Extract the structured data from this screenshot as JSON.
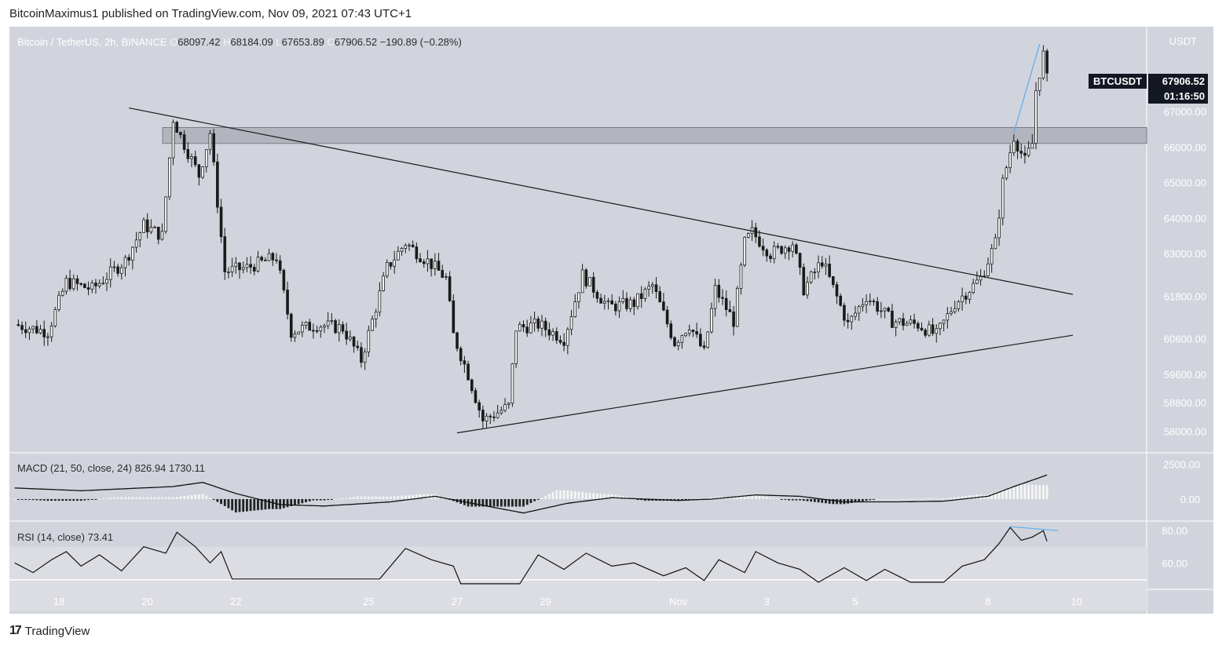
{
  "header": {
    "text": "BitcoinMaximus1 published on TradingView.com, Nov 09, 2021 07:43 UTC+1"
  },
  "footer": {
    "logo": "17",
    "brand": "TradingView"
  },
  "legend": {
    "symbol": "Bitcoin / TetherUS, 2h, BINANCE",
    "o_label": "O",
    "o": "68097.42",
    "h_label": "H",
    "h": "68184.09",
    "l_label": "L",
    "l": "67653.89",
    "c_label": "C",
    "c": "67906.52",
    "change": "−190.89 (−0.28%)"
  },
  "badges": {
    "symbol": "BTCUSDT",
    "price": "67906.52",
    "countdown": "01:16:50"
  },
  "colors": {
    "bg": "#d1d4dc",
    "plot_bg": "#d1d4dc",
    "candle": "#1a1a1a",
    "trendline": "#1a1a1a",
    "accent_line": "#5aaef0",
    "zone": "#b2b5be"
  },
  "chart_data": [
    {
      "type": "candlestick",
      "title": "",
      "unit_label": "USDT",
      "y_ticks": [
        "58000.00",
        "58800.00",
        "59600.00",
        "60600.00",
        "61800.00",
        "63000.00",
        "64000.00",
        "65000.00",
        "66000.00",
        "67000.00"
      ],
      "ylim": [
        57500,
        69300
      ],
      "x_ticks": [
        "18",
        "20",
        "22",
        "25",
        "27",
        "29",
        "Nov",
        "3",
        "5",
        "8",
        "10"
      ],
      "x_tick_dates": [
        "Oct 18",
        "Oct 20",
        "Oct 22",
        "Oct 25",
        "Oct 27",
        "Oct 29",
        "Nov 1",
        "Nov 3",
        "Nov 5",
        "Nov 8",
        "Nov 10"
      ],
      "interval": "2h",
      "resistance_zone": [
        66100,
        66550
      ],
      "descending_trendline": {
        "from": {
          "date": "Oct 19 14:00",
          "y": 67100
        },
        "to": {
          "date": "Nov 9 22:00",
          "y": 61850
        }
      },
      "ascending_trendline": {
        "from": {
          "date": "Oct 27 00:00",
          "y": 57950
        },
        "to": {
          "date": "Nov 9 22:00",
          "y": 60700
        }
      },
      "closes_anchor": [
        {
          "date": "Oct 17 00:00",
          "close": 61000
        },
        {
          "date": "Oct 17 18:00",
          "close": 60800
        },
        {
          "date": "Oct 18 04:00",
          "close": 62200
        },
        {
          "date": "Oct 18 18:00",
          "close": 62000
        },
        {
          "date": "Oct 19 12:00",
          "close": 62800
        },
        {
          "date": "Oct 19 22:00",
          "close": 63800
        },
        {
          "date": "Oct 20 08:00",
          "close": 63500
        },
        {
          "date": "Oct 20 14:00",
          "close": 66800
        },
        {
          "date": "Oct 20 18:00",
          "close": 66300
        },
        {
          "date": "Oct 21 04:00",
          "close": 65200
        },
        {
          "date": "Oct 21 10:00",
          "close": 66400
        },
        {
          "date": "Oct 21 18:00",
          "close": 62500
        },
        {
          "date": "Oct 22 06:00",
          "close": 62600
        },
        {
          "date": "Oct 22 22:00",
          "close": 62900
        },
        {
          "date": "Oct 23 06:00",
          "close": 60800
        },
        {
          "date": "Oct 23 20:00",
          "close": 61000
        },
        {
          "date": "Oct 24 10:00",
          "close": 60900
        },
        {
          "date": "Oct 24 20:00",
          "close": 60000
        },
        {
          "date": "Oct 25 10:00",
          "close": 62600
        },
        {
          "date": "Oct 25 20:00",
          "close": 63300
        },
        {
          "date": "Oct 26 10:00",
          "close": 62700
        },
        {
          "date": "Oct 26 18:00",
          "close": 62300
        },
        {
          "date": "Oct 26 22:00",
          "close": 60700
        },
        {
          "date": "Oct 27 06:00",
          "close": 59600
        },
        {
          "date": "Oct 27 14:00",
          "close": 58300
        },
        {
          "date": "Oct 28 04:00",
          "close": 58700
        },
        {
          "date": "Oct 28 08:00",
          "close": 60900
        },
        {
          "date": "Oct 28 20:00",
          "close": 61000
        },
        {
          "date": "Oct 29 10:00",
          "close": 60600
        },
        {
          "date": "Oct 29 20:00",
          "close": 62400
        },
        {
          "date": "Oct 30 10:00",
          "close": 61500
        },
        {
          "date": "Oct 31 00:00",
          "close": 61600
        },
        {
          "date": "Oct 31 10:00",
          "close": 62100
        },
        {
          "date": "Oct 31 22:00",
          "close": 60500
        },
        {
          "date": "Nov 1 06:00",
          "close": 61000
        },
        {
          "date": "Nov 1 14:00",
          "close": 60200
        },
        {
          "date": "Nov 1 20:00",
          "close": 62000
        },
        {
          "date": "Nov 2 06:00",
          "close": 61100
        },
        {
          "date": "Nov 2 12:00",
          "close": 63300
        },
        {
          "date": "Nov 2 16:00",
          "close": 63600
        },
        {
          "date": "Nov 3 02:00",
          "close": 63000
        },
        {
          "date": "Nov 3 14:00",
          "close": 63300
        },
        {
          "date": "Nov 3 20:00",
          "close": 62000
        },
        {
          "date": "Nov 4 06:00",
          "close": 62800
        },
        {
          "date": "Nov 4 20:00",
          "close": 61000
        },
        {
          "date": "Nov 5 06:00",
          "close": 61800
        },
        {
          "date": "Nov 5 20:00",
          "close": 61100
        },
        {
          "date": "Nov 6 10:00",
          "close": 61000
        },
        {
          "date": "Nov 6 20:00",
          "close": 60700
        },
        {
          "date": "Nov 7 06:00",
          "close": 61600
        },
        {
          "date": "Nov 7 20:00",
          "close": 62300
        },
        {
          "date": "Nov 8 04:00",
          "close": 63300
        },
        {
          "date": "Nov 8 08:00",
          "close": 65000
        },
        {
          "date": "Nov 8 14:00",
          "close": 66300
        },
        {
          "date": "Nov 8 20:00",
          "close": 65600
        },
        {
          "date": "Nov 9 00:00",
          "close": 66100
        },
        {
          "date": "Nov 9 02:00",
          "close": 67600
        },
        {
          "date": "Nov 9 06:00",
          "close": 68600
        },
        {
          "date": "Nov 9 08:00",
          "close": 67906.52
        }
      ]
    },
    {
      "type": "line",
      "title": "MACD (21, 50, close, 24)",
      "values_printed": [
        "826.94",
        "1730.11"
      ],
      "y_ticks": [
        "0.00",
        "2500.00"
      ],
      "ylim": [
        -1300,
        3100
      ],
      "series": [
        {
          "values_anchor": [
            {
              "date": "Oct 17 00:00",
              "y": 800
            },
            {
              "date": "Oct 18 12:00",
              "y": 600
            },
            {
              "date": "Oct 20 14:00",
              "y": 900
            },
            {
              "date": "Oct 21 06:00",
              "y": 1200
            },
            {
              "date": "Oct 22 00:00",
              "y": 400
            },
            {
              "date": "Oct 23 00:00",
              "y": -400
            },
            {
              "date": "Oct 24 00:00",
              "y": -500
            },
            {
              "date": "Oct 25 12:00",
              "y": -200
            },
            {
              "date": "Oct 26 12:00",
              "y": 200
            },
            {
              "date": "Oct 27 12:00",
              "y": -400
            },
            {
              "date": "Oct 28 12:00",
              "y": -1000
            },
            {
              "date": "Oct 29 12:00",
              "y": -300
            },
            {
              "date": "Oct 30 12:00",
              "y": 100
            },
            {
              "date": "Nov 1 00:00",
              "y": -100
            },
            {
              "date": "Nov 1 18:00",
              "y": 0
            },
            {
              "date": "Nov 2 18:00",
              "y": 300
            },
            {
              "date": "Nov 3 18:00",
              "y": 200
            },
            {
              "date": "Nov 4 18:00",
              "y": -200
            },
            {
              "date": "Nov 6 00:00",
              "y": -200
            },
            {
              "date": "Nov 7 00:00",
              "y": -150
            },
            {
              "date": "Nov 8 00:00",
              "y": 200
            },
            {
              "date": "Nov 8 14:00",
              "y": 900
            },
            {
              "date": "Nov 9 08:00",
              "y": 1730
            }
          ]
        }
      ]
    },
    {
      "type": "line",
      "title": "RSI (14, close)",
      "values_printed": [
        "73.41"
      ],
      "y_ticks": [
        "60.00",
        "80.00"
      ],
      "ylim": [
        46,
        84
      ],
      "band": [
        30,
        70
      ],
      "series": [
        {
          "values_anchor": [
            {
              "date": "Oct 17 00:00",
              "y": 60
            },
            {
              "date": "Oct 17 10:00",
              "y": 54
            },
            {
              "date": "Oct 17 20:00",
              "y": 62
            },
            {
              "date": "Oct 18 04:00",
              "y": 67
            },
            {
              "date": "Oct 18 12:00",
              "y": 58
            },
            {
              "date": "Oct 18 22:00",
              "y": 65
            },
            {
              "date": "Oct 19 10:00",
              "y": 55
            },
            {
              "date": "Oct 19 22:00",
              "y": 70
            },
            {
              "date": "Oct 20 10:00",
              "y": 66
            },
            {
              "date": "Oct 20 16:00",
              "y": 79
            },
            {
              "date": "Oct 21 02:00",
              "y": 70
            },
            {
              "date": "Oct 21 10:00",
              "y": 60
            },
            {
              "date": "Oct 21 16:00",
              "y": 67
            },
            {
              "date": "Oct 21 22:00",
              "y": 50
            },
            {
              "date": "Oct 25 06:00",
              "y": 50
            },
            {
              "date": "Oct 25 20:00",
              "y": 69
            },
            {
              "date": "Oct 26 10:00",
              "y": 62
            },
            {
              "date": "Oct 26 22:00",
              "y": 58
            },
            {
              "date": "Oct 27 02:00",
              "y": 47
            },
            {
              "date": "Oct 28 10:00",
              "y": 47
            },
            {
              "date": "Oct 28 20:00",
              "y": 65
            },
            {
              "date": "Oct 29 10:00",
              "y": 56
            },
            {
              "date": "Oct 29 22:00",
              "y": 66
            },
            {
              "date": "Oct 30 12:00",
              "y": 58
            },
            {
              "date": "Oct 31 00:00",
              "y": 60
            },
            {
              "date": "Oct 31 16:00",
              "y": 52
            },
            {
              "date": "Nov 1 04:00",
              "y": 57
            },
            {
              "date": "Nov 1 14:00",
              "y": 49
            },
            {
              "date": "Nov 1 22:00",
              "y": 62
            },
            {
              "date": "Nov 2 12:00",
              "y": 54
            },
            {
              "date": "Nov 2 18:00",
              "y": 67
            },
            {
              "date": "Nov 3 06:00",
              "y": 60
            },
            {
              "date": "Nov 3 18:00",
              "y": 56
            },
            {
              "date": "Nov 4 04:00",
              "y": 48
            },
            {
              "date": "Nov 4 18:00",
              "y": 57
            },
            {
              "date": "Nov 5 06:00",
              "y": 49
            },
            {
              "date": "Nov 5 16:00",
              "y": 56
            },
            {
              "date": "Nov 6 06:00",
              "y": 48
            },
            {
              "date": "Nov 7 00:00",
              "y": 48
            },
            {
              "date": "Nov 7 10:00",
              "y": 58
            },
            {
              "date": "Nov 7 22:00",
              "y": 62
            },
            {
              "date": "Nov 8 06:00",
              "y": 72
            },
            {
              "date": "Nov 8 12:00",
              "y": 82
            },
            {
              "date": "Nov 8 18:00",
              "y": 74
            },
            {
              "date": "Nov 9 00:00",
              "y": 76
            },
            {
              "date": "Nov 9 06:00",
              "y": 80
            },
            {
              "date": "Nov 9 08:00",
              "y": 73.41
            }
          ]
        }
      ],
      "divergence_line": {
        "from": {
          "date": "Nov 8 12:00",
          "y": 82.5
        },
        "to": {
          "date": "Nov 9 14:00",
          "y": 80
        }
      }
    }
  ]
}
